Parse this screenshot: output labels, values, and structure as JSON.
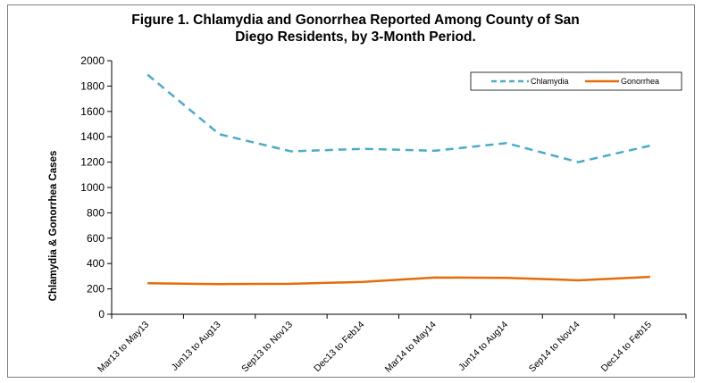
{
  "chart_data": {
    "type": "line",
    "title_line1": "Figure 1. Chlamydia and Gonorrhea Reported Among County of San",
    "title_line2": "Diego Residents, by 3-Month Period.",
    "ylabel": "Chlamydia & Gonorrhea Cases",
    "xlabel": "",
    "categories": [
      "Mar13 to May13",
      "Jun13 to Aug13",
      "Sep13 to Nov13",
      "Dec13 to Feb14",
      "Mar14 to May14",
      "Jun14 to Aug14",
      "Sep14 to Nov14",
      "Dec14 to Feb15"
    ],
    "ylim": [
      0,
      2000
    ],
    "yticks": [
      "0",
      "200",
      "400",
      "600",
      "800",
      "1000",
      "1200",
      "1400",
      "1600",
      "1800",
      "2000"
    ],
    "grid": false,
    "legend_position": "top-right",
    "series": [
      {
        "name": "Chlamydia",
        "color": "#4bacc6",
        "dash": true,
        "values": [
          1890,
          1420,
          1285,
          1305,
          1290,
          1350,
          1200,
          1330
        ]
      },
      {
        "name": "Gonorrhea",
        "color": "#e46c0a",
        "dash": false,
        "values": [
          245,
          238,
          240,
          255,
          290,
          287,
          268,
          295
        ]
      }
    ]
  }
}
